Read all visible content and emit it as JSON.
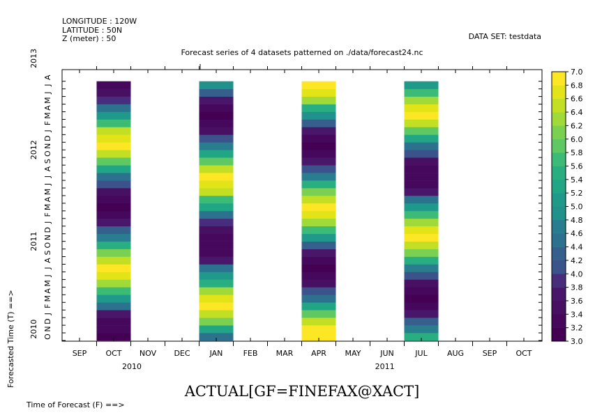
{
  "header": {
    "info_lines": [
      "LONGITUDE : 120W",
      "LATITUDE : 50N",
      "Z (meter) : 50"
    ],
    "dataset": "DATA SET: testdata",
    "title": "Forecast series of 4 datasets patterned on ./data/forecast24.nc"
  },
  "chart_data": {
    "type": "heatmap",
    "title": "Forecast series of 4 datasets patterned on ./data/forecast24.nc",
    "xlabel": "Time of Forecast (F) ==>",
    "ylabel": "Forecasted Time (T) ==>",
    "variable_label": "ACTUAL[GF=FINEFAX@XACT]",
    "x_tick_labels": [
      "SEP",
      "OCT",
      "NOV",
      "DEC",
      "JAN",
      "FEB",
      "MAR",
      "APR",
      "MAY",
      "JUN",
      "JUL",
      "AUG",
      "SEP",
      "OCT"
    ],
    "x_year_labels": [
      {
        "label": "2010",
        "at_tick": 1
      },
      {
        "label": "2011",
        "at_tick": 8.4
      }
    ],
    "y_month_sequence": [
      "O",
      "N",
      "D",
      "J",
      "F",
      "M",
      "A",
      "M",
      "J",
      "J",
      "A",
      "S",
      "O",
      "N",
      "D",
      "J",
      "F",
      "M",
      "A",
      "M",
      "J",
      "J",
      "A",
      "S",
      "O",
      "N",
      "D",
      "J",
      "F",
      "M",
      "A",
      "M",
      "J",
      "J",
      "A"
    ],
    "y_year_labels": [
      {
        "label": "2010",
        "at_month": 1.5
      },
      {
        "label": "2011",
        "at_month": 13
      },
      {
        "label": "2012",
        "at_month": 25
      },
      {
        "label": "2013",
        "at_month": 37
      }
    ],
    "colorbar": {
      "min": 3.0,
      "max": 7.0,
      "step": 0.2,
      "tick_labels": [
        "3.0",
        "3.2",
        "3.4",
        "3.6",
        "3.8",
        "4.0",
        "4.2",
        "4.4",
        "4.6",
        "4.8",
        "5.0",
        "5.2",
        "5.4",
        "5.6",
        "5.8",
        "6.0",
        "6.2",
        "6.4",
        "6.6",
        "6.8",
        "7.0"
      ],
      "colors": [
        "#440154",
        "#46085c",
        "#471063",
        "#481769",
        "#472d7b",
        "#3b528b",
        "#355f8d",
        "#2c728e",
        "#287d8e",
        "#21918c",
        "#1f9a8a",
        "#21a685",
        "#28ae80",
        "#3bbb75",
        "#5ec962",
        "#7ad151",
        "#a0da39",
        "#c2df23",
        "#e2e418",
        "#fde725"
      ]
    },
    "series": [
      {
        "start_tick": 0.5,
        "end_tick": 1.5,
        "values": [
          3.1,
          3.2,
          3.4,
          3.8,
          4.4,
          5.0,
          5.7,
          6.3,
          6.8,
          6.9,
          6.6,
          6.0,
          5.4,
          4.8,
          4.2,
          3.7,
          3.3,
          3.1,
          3.2,
          3.5,
          4.0,
          4.6,
          5.3,
          5.9,
          6.5,
          6.9,
          6.8,
          6.4,
          5.8,
          5.1,
          4.5,
          3.9,
          3.5,
          3.2
        ]
      },
      {
        "start_tick": 3.5,
        "end_tick": 4.5,
        "values": [
          4.6,
          5.3,
          6.0,
          6.6,
          6.9,
          6.7,
          6.2,
          5.6,
          5.0,
          4.4,
          3.8,
          3.4,
          3.2,
          3.2,
          3.5,
          3.9,
          4.5,
          5.2,
          5.8,
          6.4,
          6.8,
          6.9,
          6.5,
          5.9,
          5.3,
          4.7,
          4.0,
          3.5,
          3.2,
          3.1,
          3.3,
          3.7,
          4.3,
          4.9
        ]
      },
      {
        "start_tick": 6.5,
        "end_tick": 7.5,
        "values": [
          6.9,
          6.9,
          6.5,
          5.9,
          5.3,
          4.6,
          4.0,
          3.5,
          3.2,
          3.1,
          3.3,
          3.7,
          4.3,
          5.0,
          5.7,
          6.3,
          6.7,
          6.9,
          6.6,
          6.0,
          5.4,
          4.7,
          4.1,
          3.6,
          3.2,
          3.1,
          3.3,
          3.6,
          4.3,
          4.9,
          5.5,
          6.2,
          6.7,
          6.9
        ]
      },
      {
        "start_tick": 9.5,
        "end_tick": 10.5,
        "values": [
          5.5,
          4.8,
          4.2,
          3.7,
          3.3,
          3.1,
          3.2,
          3.5,
          4.1,
          4.7,
          5.4,
          6.1,
          6.6,
          6.9,
          6.8,
          6.3,
          5.7,
          5.0,
          4.4,
          3.8,
          3.4,
          3.2,
          3.2,
          3.5,
          4.0,
          4.6,
          5.3,
          5.9,
          6.5,
          6.9,
          6.8,
          6.3,
          5.7,
          5.0
        ]
      }
    ]
  }
}
